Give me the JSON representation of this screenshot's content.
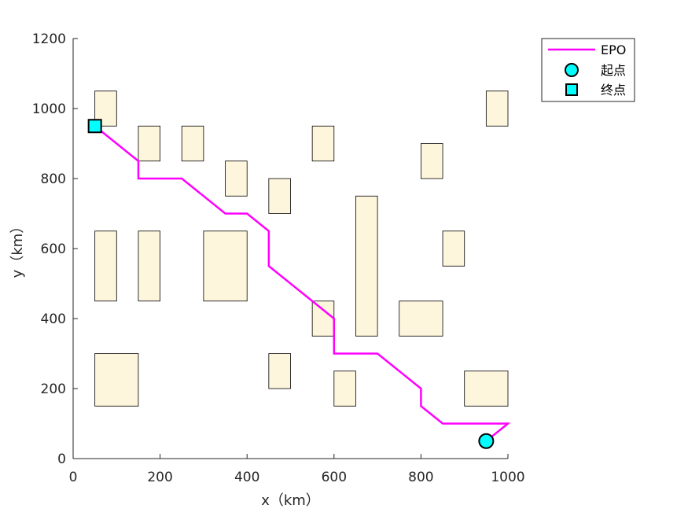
{
  "chart_data": {
    "type": "line",
    "title": "",
    "xlabel": "x（km）",
    "ylabel": "y（km）",
    "xlim": [
      0,
      1000
    ],
    "ylim": [
      0,
      1200
    ],
    "xticks": [
      0,
      200,
      400,
      600,
      800,
      1000
    ],
    "yticks": [
      0,
      200,
      400,
      600,
      800,
      1000,
      1200
    ],
    "grid": false,
    "legend_position": "outside-top-right",
    "obstacle_color": "#fdf5dc",
    "obstacles": [
      {
        "x": [
          50,
          100
        ],
        "y": [
          950,
          1050
        ]
      },
      {
        "x": [
          150,
          200
        ],
        "y": [
          850,
          950
        ]
      },
      {
        "x": [
          250,
          300
        ],
        "y": [
          850,
          950
        ]
      },
      {
        "x": [
          350,
          400
        ],
        "y": [
          750,
          850
        ]
      },
      {
        "x": [
          450,
          500
        ],
        "y": [
          700,
          800
        ]
      },
      {
        "x": [
          550,
          600
        ],
        "y": [
          850,
          950
        ]
      },
      {
        "x": [
          800,
          850
        ],
        "y": [
          800,
          900
        ]
      },
      {
        "x": [
          950,
          1000
        ],
        "y": [
          950,
          1050
        ]
      },
      {
        "x": [
          50,
          100
        ],
        "y": [
          450,
          650
        ]
      },
      {
        "x": [
          150,
          200
        ],
        "y": [
          450,
          650
        ]
      },
      {
        "x": [
          300,
          400
        ],
        "y": [
          450,
          650
        ]
      },
      {
        "x": [
          550,
          600
        ],
        "y": [
          350,
          450
        ]
      },
      {
        "x": [
          650,
          700
        ],
        "y": [
          350,
          750
        ]
      },
      {
        "x": [
          750,
          850
        ],
        "y": [
          350,
          450
        ]
      },
      {
        "x": [
          850,
          900
        ],
        "y": [
          550,
          650
        ]
      },
      {
        "x": [
          50,
          150
        ],
        "y": [
          150,
          300
        ]
      },
      {
        "x": [
          450,
          500
        ],
        "y": [
          200,
          300
        ]
      },
      {
        "x": [
          600,
          650
        ],
        "y": [
          150,
          250
        ]
      },
      {
        "x": [
          900,
          1000
        ],
        "y": [
          150,
          250
        ]
      }
    ],
    "series": [
      {
        "name": "EPO",
        "color": "#ff00ff",
        "x": [
          950,
          1000,
          850,
          800,
          800,
          700,
          600,
          600,
          450,
          450,
          400,
          350,
          250,
          150,
          150,
          50
        ],
        "y": [
          50,
          100,
          100,
          150,
          200,
          300,
          300,
          400,
          550,
          650,
          700,
          700,
          800,
          800,
          850,
          950
        ]
      }
    ],
    "start": {
      "name": "起点",
      "x": 950,
      "y": 50,
      "marker": "circle",
      "color": "#00ffff"
    },
    "end": {
      "name": "终点",
      "x": 50,
      "y": 950,
      "marker": "square",
      "color": "#00ffff"
    }
  }
}
